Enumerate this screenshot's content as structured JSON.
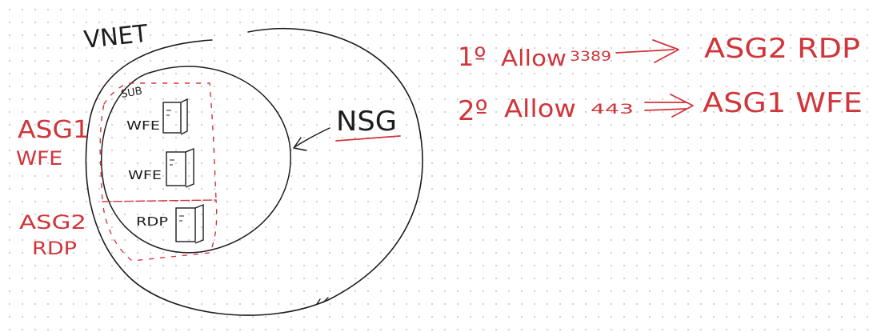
{
  "colors": {
    "black_ink": "#1d1d1d",
    "red_ink": "#d0353a"
  },
  "labels": {
    "vnet": "VNET",
    "subnet": "SUB",
    "nsg": "NSG",
    "asg1": "ASG1",
    "asg1_role": "WFE",
    "asg2": "ASG2",
    "asg2_role": "RDP"
  },
  "servers": [
    {
      "label": "WFE",
      "icon": "server-icon"
    },
    {
      "label": "WFE",
      "icon": "server-icon"
    },
    {
      "label": "RDP",
      "icon": "server-icon"
    }
  ],
  "rules": [
    {
      "order": "1º",
      "action": "Allow",
      "port": "3389",
      "target": "ASG2 RDP"
    },
    {
      "order": "2º",
      "action": "Allow",
      "port": "443",
      "target": "ASG1 WFE"
    }
  ]
}
